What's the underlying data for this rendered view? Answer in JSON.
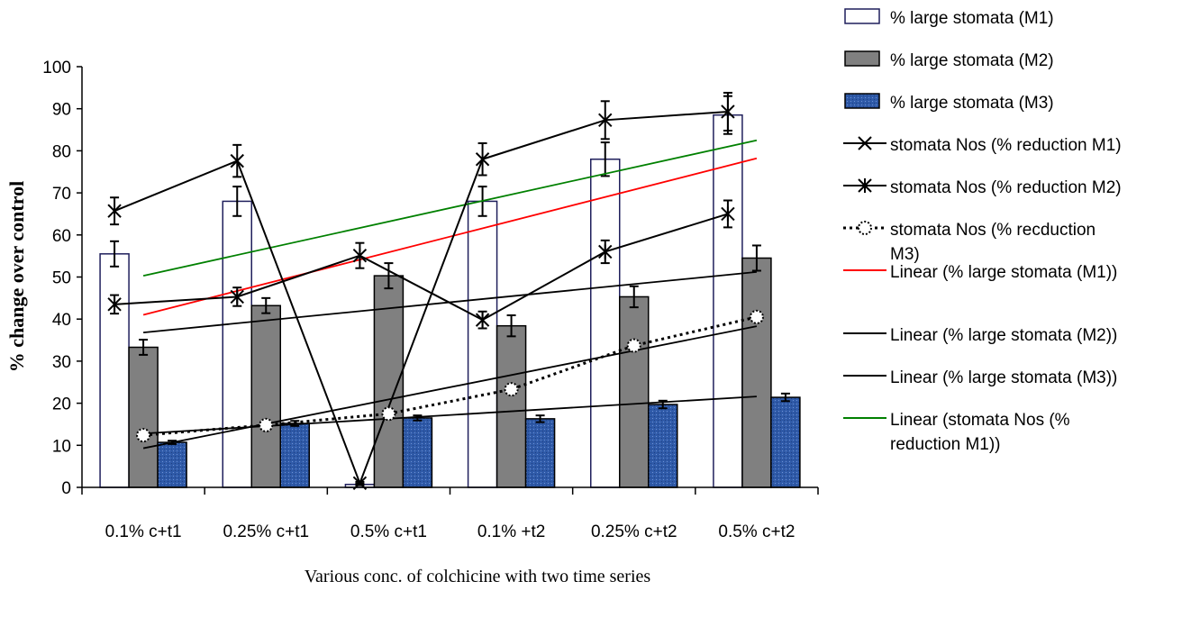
{
  "chart_data": {
    "type": "bar",
    "categories": [
      "0.1% c+t1",
      "0.25% c+t1",
      "0.5% c+t1",
      "0.1% +t2",
      "0.25% c+t2",
      "0.5% c+t2"
    ],
    "xlabel": "Various conc. of colchicine with two time series",
    "ylabel": "% change over control",
    "ylim": [
      0,
      100
    ],
    "yticks": [
      0,
      10,
      20,
      30,
      40,
      50,
      60,
      70,
      80,
      90,
      100
    ],
    "grid": false,
    "legend_position": "right",
    "bar_series": [
      {
        "name": "% large stomata (M1)",
        "fill": "#ffffff",
        "stroke": "#1f1f5c",
        "values": [
          55.5,
          68,
          0.7,
          68,
          78,
          88.5
        ],
        "errors": [
          3,
          3.5,
          0.2,
          3.5,
          4,
          4.5
        ]
      },
      {
        "name": "% large stomata (M2)",
        "fill": "#808080",
        "stroke": "#000000",
        "values": [
          33.3,
          43.2,
          50.3,
          38.4,
          45.3,
          54.5
        ],
        "errors": [
          1.8,
          1.8,
          3,
          2.5,
          2.5,
          3
        ]
      },
      {
        "name": "% large stomata (M3)",
        "fill": "#2f5aa8",
        "stroke": "#000000",
        "values": [
          10.7,
          15.2,
          16.5,
          16.3,
          19.7,
          21.4
        ],
        "errors": [
          0.4,
          0.6,
          0.6,
          0.8,
          0.9,
          0.9
        ]
      }
    ],
    "line_series": [
      {
        "name": "stomata Nos (% reduction M1)",
        "marker": "x",
        "values": [
          65.7,
          77.6,
          1.0,
          78,
          87.3,
          89.3
        ],
        "errors": [
          3.2,
          3.8,
          0.3,
          3.8,
          4.5,
          4.5
        ]
      },
      {
        "name": "stomata Nos (% reduction M2)",
        "marker": "star",
        "values": [
          43.5,
          45.3,
          55.1,
          39.8,
          56,
          65
        ],
        "errors": [
          2.2,
          2.2,
          3,
          2,
          2.7,
          3.2
        ]
      },
      {
        "name": "stomata Nos (% recduction M3)",
        "marker": "circle",
        "style": "dotted",
        "values": [
          12.4,
          14.8,
          17.5,
          23.3,
          33.7,
          40.5
        ],
        "errors": [
          0.8,
          0.8,
          0.8,
          0.8,
          0.8,
          0.8
        ]
      }
    ],
    "trendlines": [
      {
        "name": "Linear (% large stomata (M1))",
        "color": "#ff0000",
        "start": 41,
        "end": 78.2
      },
      {
        "name": "Linear (% large stomata (M2))",
        "color": "#000000",
        "start": 36.8,
        "end": 51.2
      },
      {
        "name": "Linear (% large stomata (M3))",
        "color": "#000000",
        "start": 12.8,
        "end": 21.6
      },
      {
        "name": "Linear (stomata Nos (% reduction M1))",
        "color": "#008000",
        "start": 50.3,
        "end": 82.5
      },
      {
        "name": "",
        "color": "#000000",
        "start": 9.3,
        "end": 38.3
      }
    ],
    "legend": [
      {
        "kind": "bar",
        "fill": "#ffffff",
        "stroke": "#1f1f5c",
        "lines": [
          "% large stomata (M1)"
        ]
      },
      {
        "kind": "bar",
        "fill": "#808080",
        "stroke": "#000000",
        "lines": [
          "% large stomata (M2)"
        ]
      },
      {
        "kind": "bar",
        "fill": "#2f5aa8",
        "stroke": "#000000",
        "lines": [
          "% large stomata (M3)"
        ]
      },
      {
        "kind": "line",
        "marker": "x",
        "color": "#000000",
        "lines": [
          "stomata Nos (% reduction M1)"
        ]
      },
      {
        "kind": "line",
        "marker": "star",
        "color": "#000000",
        "lines": [
          "stomata Nos (% reduction M2)"
        ]
      },
      {
        "kind": "line",
        "marker": "circle",
        "style": "dotted",
        "color": "#000000",
        "lines": [
          " stomata Nos (% recduction",
          "M3)"
        ]
      },
      {
        "kind": "line",
        "color": "#ff0000",
        "lines": [
          "Linear (% large stomata (M1))"
        ]
      },
      {
        "kind": "line",
        "color": "#000000",
        "lines": [
          "Linear (% large stomata (M2))"
        ]
      },
      {
        "kind": "line",
        "color": "#000000",
        "lines": [
          "Linear (% large stomata (M3))"
        ]
      },
      {
        "kind": "line",
        "color": "#008000",
        "lines": [
          "Linear (stomata Nos (%",
          "reduction M1))"
        ]
      }
    ]
  }
}
